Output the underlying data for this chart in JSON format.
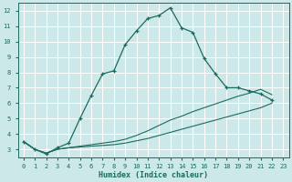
{
  "xlabel": "Humidex (Indice chaleur)",
  "background_color": "#cde8e8",
  "grid_color": "#ffffff",
  "line_color": "#1a6b5e",
  "xlim": [
    -0.5,
    23.5
  ],
  "ylim": [
    2.5,
    12.5
  ],
  "xticks": [
    0,
    1,
    2,
    3,
    4,
    5,
    6,
    7,
    8,
    9,
    10,
    11,
    12,
    13,
    14,
    15,
    16,
    17,
    18,
    19,
    20,
    21,
    22,
    23
  ],
  "yticks": [
    3,
    4,
    5,
    6,
    7,
    8,
    9,
    10,
    11,
    12
  ],
  "main_x": [
    0,
    1,
    2,
    3,
    4,
    5,
    6,
    7,
    8,
    9,
    10,
    11,
    12,
    13,
    14,
    15,
    16,
    17,
    18,
    19,
    20,
    21,
    22
  ],
  "main_y": [
    3.5,
    3.0,
    2.7,
    3.1,
    3.4,
    5.0,
    6.5,
    7.9,
    8.1,
    9.8,
    10.7,
    11.5,
    11.7,
    12.2,
    10.9,
    10.6,
    8.9,
    7.9,
    7.0,
    7.0,
    6.8,
    6.6,
    6.2
  ],
  "line2_x": [
    0,
    1,
    2,
    3,
    4,
    5,
    6,
    7,
    8,
    9,
    10,
    11,
    12,
    13,
    14,
    15,
    16,
    17,
    18,
    19,
    20,
    21,
    22
  ],
  "line2_y": [
    3.5,
    3.0,
    2.75,
    3.0,
    3.1,
    3.15,
    3.2,
    3.25,
    3.3,
    3.4,
    3.55,
    3.7,
    3.9,
    4.1,
    4.3,
    4.5,
    4.7,
    4.9,
    5.1,
    5.3,
    5.5,
    5.7,
    6.0
  ],
  "line3_x": [
    0,
    1,
    2,
    3,
    4,
    5,
    6,
    7,
    8,
    9,
    10,
    11,
    12,
    13,
    14,
    15,
    16,
    17,
    18,
    19,
    20,
    21,
    22
  ],
  "line3_y": [
    3.5,
    3.0,
    2.75,
    3.0,
    3.1,
    3.2,
    3.3,
    3.4,
    3.5,
    3.65,
    3.9,
    4.2,
    4.55,
    4.9,
    5.15,
    5.45,
    5.7,
    5.95,
    6.2,
    6.45,
    6.65,
    6.9,
    6.55
  ]
}
